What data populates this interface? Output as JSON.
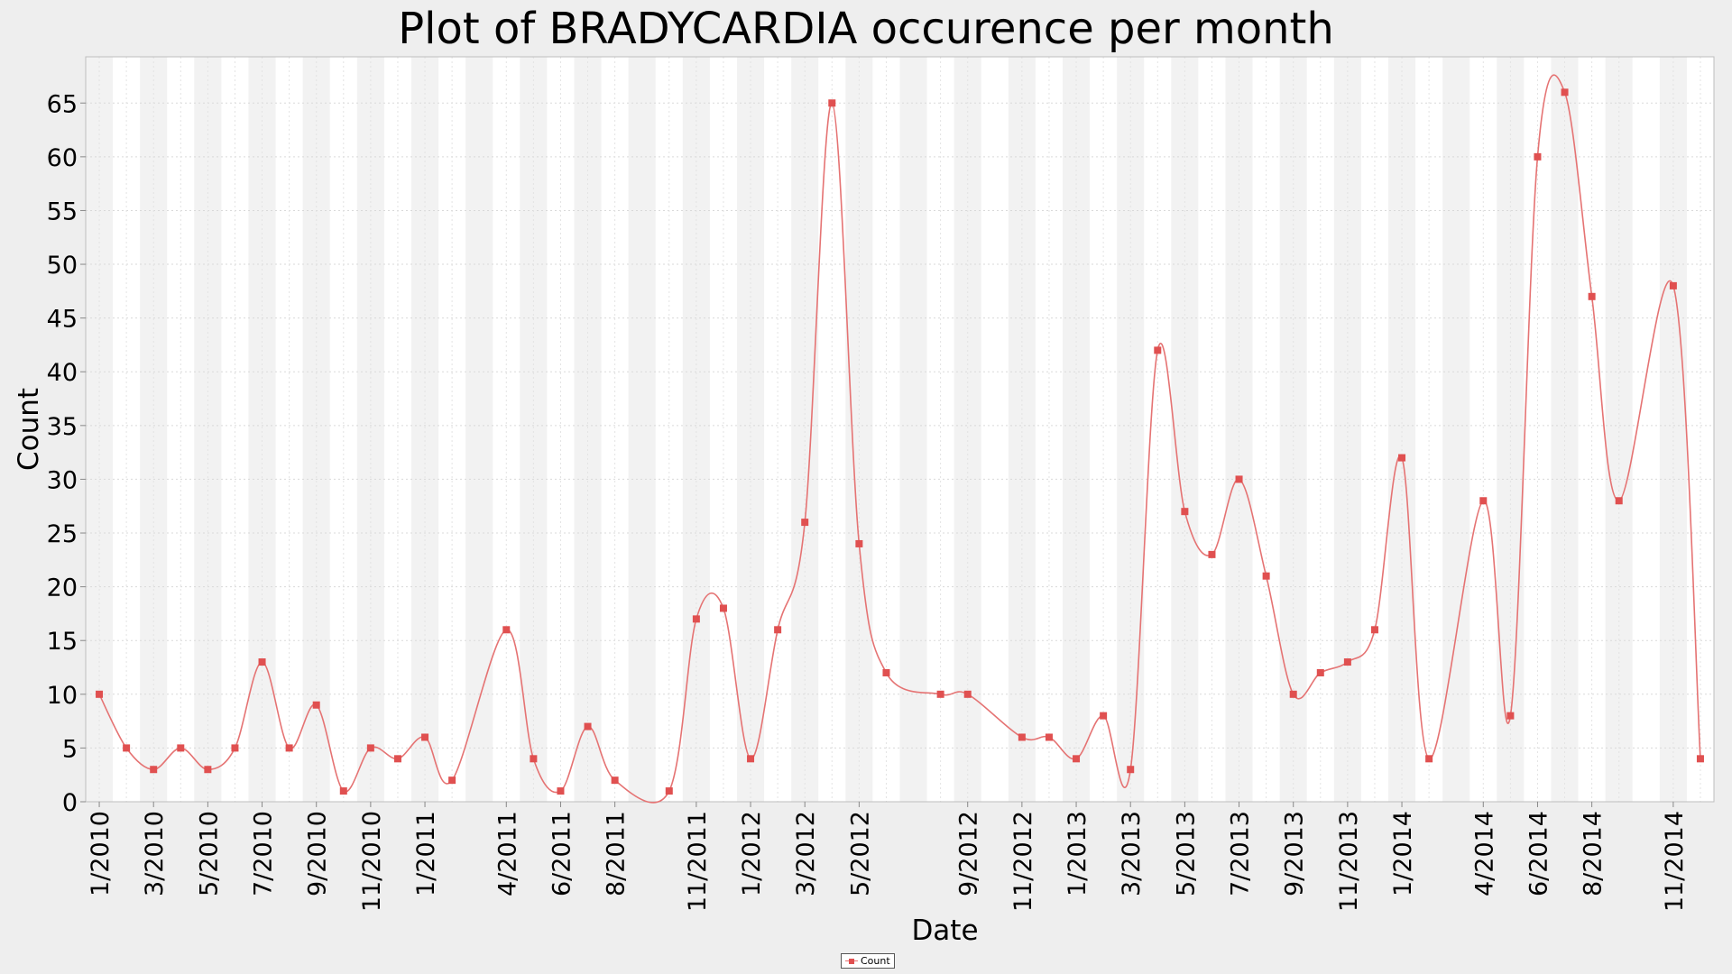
{
  "chart_data": {
    "type": "line",
    "title": "Plot of BRADYCARDIA occurence per month",
    "xlabel": "Date",
    "ylabel": "Count",
    "x": [
      "1/2010",
      "2/2010",
      "3/2010",
      "4/2010",
      "5/2010",
      "6/2010",
      "7/2010",
      "8/2010",
      "9/2010",
      "10/2010",
      "11/2010",
      "12/2010",
      "1/2011",
      "2/2011",
      "4/2011",
      "5/2011",
      "6/2011",
      "7/2011",
      "8/2011",
      "10/2011",
      "11/2011",
      "12/2011",
      "1/2012",
      "2/2012",
      "3/2012",
      "4/2012",
      "5/2012",
      "6/2012",
      "8/2012",
      "9/2012",
      "11/2012",
      "12/2012",
      "1/2013",
      "2/2013",
      "3/2013",
      "4/2013",
      "5/2013",
      "6/2013",
      "7/2013",
      "8/2013",
      "9/2013",
      "10/2013",
      "11/2013",
      "12/2013",
      "1/2014",
      "2/2014",
      "4/2014",
      "5/2014",
      "6/2014",
      "7/2014",
      "8/2014",
      "9/2014",
      "11/2014",
      "12/2014"
    ],
    "series": [
      {
        "name": "Count",
        "values": [
          10,
          5,
          3,
          5,
          3,
          5,
          13,
          5,
          9,
          1,
          5,
          4,
          6,
          2,
          16,
          4,
          1,
          7,
          2,
          1,
          17,
          18,
          4,
          16,
          26,
          65,
          24,
          12,
          10,
          10,
          6,
          6,
          4,
          8,
          3,
          42,
          27,
          23,
          30,
          21,
          10,
          12,
          13,
          16,
          32,
          4,
          28,
          8,
          60,
          66,
          47,
          28,
          48,
          4
        ]
      }
    ],
    "x_tick_labels": [
      "1/2010",
      "3/2010",
      "5/2010",
      "7/2010",
      "9/2010",
      "11/2010",
      "1/2011",
      "4/2011",
      "6/2011",
      "8/2011",
      "11/2011",
      "1/2012",
      "3/2012",
      "5/2012",
      "9/2012",
      "11/2012",
      "1/2013",
      "3/2013",
      "5/2013",
      "7/2013",
      "9/2013",
      "11/2013",
      "1/2014",
      "4/2014",
      "6/2014",
      "8/2014",
      "11/2014"
    ],
    "y_ticks": [
      0,
      5,
      10,
      15,
      20,
      25,
      30,
      35,
      40,
      45,
      50,
      55,
      60,
      65
    ],
    "ylim": [
      0,
      69.3
    ],
    "grid": true,
    "legend": [
      "Count"
    ],
    "legend_position": "bottom-center",
    "colors": {
      "series": "#e57373",
      "marker": "#e05050",
      "band_a": "#f2f2f2",
      "band_b": "#ffffff"
    }
  }
}
